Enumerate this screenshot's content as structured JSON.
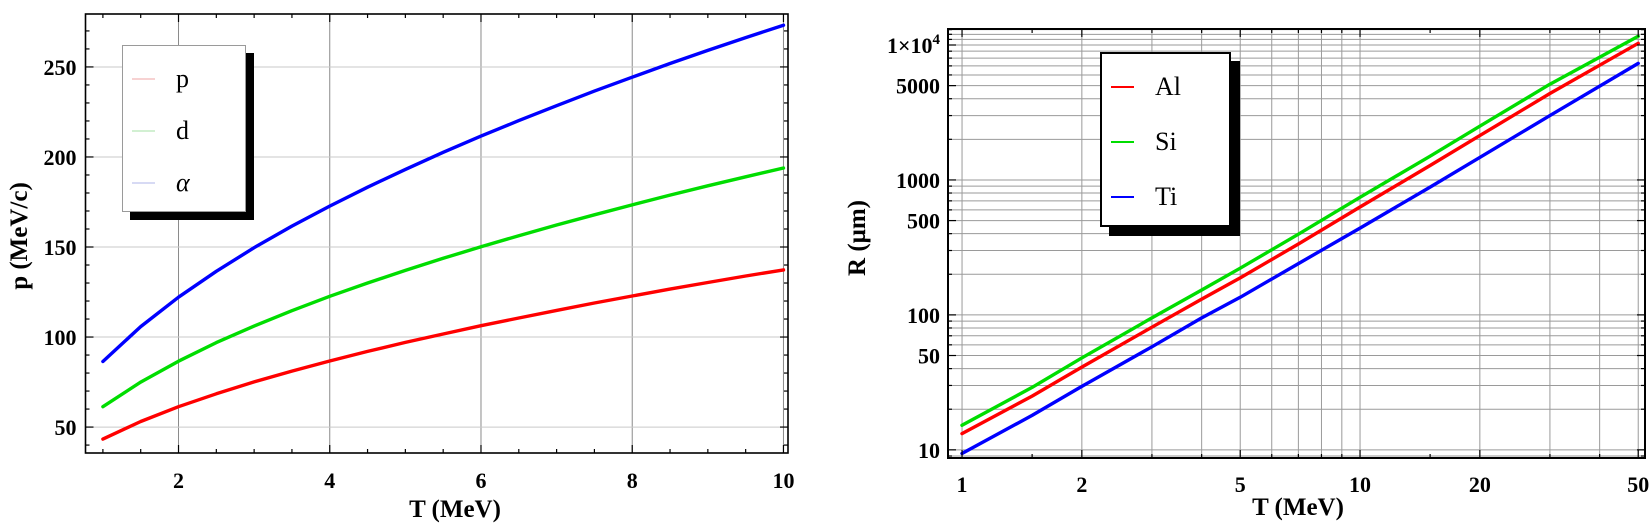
{
  "page": {
    "background": "#ffffff"
  },
  "chart_data": [
    {
      "type": "line",
      "title": "",
      "xlabel": "T (MeV)",
      "ylabel": "p (MeV/c)",
      "xscale": "linear",
      "yscale": "linear",
      "xlim": [
        0.77,
        10.06
      ],
      "ylim": [
        35.6,
        279.4
      ],
      "grid_on": true,
      "legend_position": "upper-left",
      "x": [
        1,
        1.5,
        2,
        2.5,
        3,
        3.5,
        4,
        4.5,
        5,
        5.5,
        6,
        6.5,
        7,
        7.5,
        8,
        8.5,
        9,
        9.5,
        10
      ],
      "series": [
        {
          "name": "p",
          "color": "#ff0000",
          "values": [
            43.3,
            53.1,
            61.3,
            68.5,
            75.1,
            81.1,
            86.7,
            92.0,
            97.0,
            101.7,
            106.3,
            110.6,
            114.8,
            118.9,
            122.8,
            126.6,
            130.3,
            133.9,
            137.3
          ]
        },
        {
          "name": "d",
          "color": "#00dd00",
          "values": [
            61.3,
            75.0,
            86.6,
            96.9,
            106.1,
            114.6,
            122.6,
            130.0,
            137.0,
            143.7,
            150.1,
            156.3,
            162.2,
            167.9,
            173.4,
            178.8,
            184.0,
            189.0,
            193.9
          ]
        },
        {
          "name": "alpha",
          "color": "#0000ff",
          "values": [
            86.4,
            105.8,
            122.1,
            136.5,
            149.6,
            161.6,
            172.7,
            183.2,
            193.1,
            202.6,
            211.6,
            220.2,
            228.5,
            236.6,
            244.3,
            251.9,
            259.2,
            266.3,
            273.2
          ]
        }
      ],
      "legend": {
        "items": [
          {
            "label": "p",
            "swatch": "#f7d2d2"
          },
          {
            "label": "d",
            "swatch": "#d2f0d2"
          },
          {
            "label": "α",
            "swatch": "#d7daf4"
          }
        ]
      },
      "xticks": {
        "major": [
          2,
          4,
          6,
          8,
          10
        ],
        "labels": [
          "2",
          "4",
          "6",
          "8",
          "10"
        ],
        "minor": [
          1,
          1.5,
          2.5,
          3,
          3.5,
          4.5,
          5,
          5.5,
          6.5,
          7,
          7.5,
          8.5,
          9,
          9.5
        ]
      },
      "yticks": {
        "major": [
          50,
          100,
          150,
          200,
          250
        ],
        "labels": [
          "50",
          "100",
          "150",
          "200",
          "250"
        ],
        "minor": [
          40,
          60,
          70,
          80,
          90,
          110,
          120,
          130,
          140,
          160,
          170,
          180,
          190,
          210,
          220,
          230,
          240,
          260,
          270
        ]
      },
      "grid": {
        "vertical": [
          2,
          4,
          6,
          8,
          10
        ],
        "horizontal": [
          50,
          100,
          150,
          200,
          250
        ]
      }
    },
    {
      "type": "line",
      "title": "",
      "xlabel": "T (MeV)",
      "ylabel": "R (μm)",
      "xscale": "log",
      "yscale": "log",
      "xlim": [
        0.922,
        52
      ],
      "ylim": [
        8.7,
        13140
      ],
      "grid_on": true,
      "legend_position": "upper-left",
      "x": [
        1,
        1.5,
        2,
        3,
        4,
        5,
        7,
        10,
        15,
        20,
        30,
        50
      ],
      "series": [
        {
          "name": "Al",
          "color": "#ff0000",
          "values": [
            13.2,
            25,
            41,
            81,
            131,
            188,
            335,
            630,
            1280,
            2130,
            4370,
            10300
          ]
        },
        {
          "name": "Si",
          "color": "#00dd00",
          "values": [
            15.2,
            29,
            48,
            95,
            153,
            222,
            396,
            744,
            1500,
            2500,
            5120,
            11600
          ]
        },
        {
          "name": "Ti",
          "color": "#0000ff",
          "values": [
            9.4,
            18,
            29.5,
            58,
            95,
            135,
            240,
            440,
            885,
            1470,
            3000,
            7300
          ]
        }
      ],
      "legend": {
        "items": [
          {
            "label": "Al",
            "swatch": "#ff0000"
          },
          {
            "label": "Si",
            "swatch": "#00dd00"
          },
          {
            "label": "Ti",
            "swatch": "#0000ff"
          }
        ]
      },
      "xticks": {
        "major": [
          1,
          2,
          5,
          10,
          20,
          50
        ],
        "labels": [
          "1",
          "2",
          "5",
          "10",
          "20",
          "50"
        ],
        "minor": [
          1.5,
          3,
          4,
          6,
          7,
          8,
          9,
          15,
          30,
          40
        ]
      },
      "yticks": {
        "major": [
          10,
          50,
          100,
          500,
          1000,
          5000,
          10000
        ],
        "labels": [
          "10",
          "50",
          "100",
          "500",
          "1000",
          "5000",
          "1×10^4"
        ],
        "minor": [
          9,
          20,
          30,
          40,
          60,
          70,
          80,
          90,
          200,
          300,
          400,
          600,
          700,
          800,
          900,
          2000,
          3000,
          4000,
          6000,
          7000,
          8000,
          9000,
          11000,
          12000,
          13000
        ]
      },
      "grid": {
        "vertical": [
          1,
          2,
          3,
          4,
          5,
          6,
          7,
          8,
          9,
          10,
          20,
          30,
          40,
          50
        ],
        "horizontal": [
          9,
          10,
          20,
          30,
          40,
          50,
          60,
          70,
          80,
          90,
          100,
          200,
          300,
          400,
          500,
          600,
          700,
          800,
          900,
          1000,
          2000,
          3000,
          4000,
          5000,
          6000,
          7000,
          8000,
          9000,
          10000,
          11000,
          12000,
          13000
        ]
      }
    }
  ]
}
